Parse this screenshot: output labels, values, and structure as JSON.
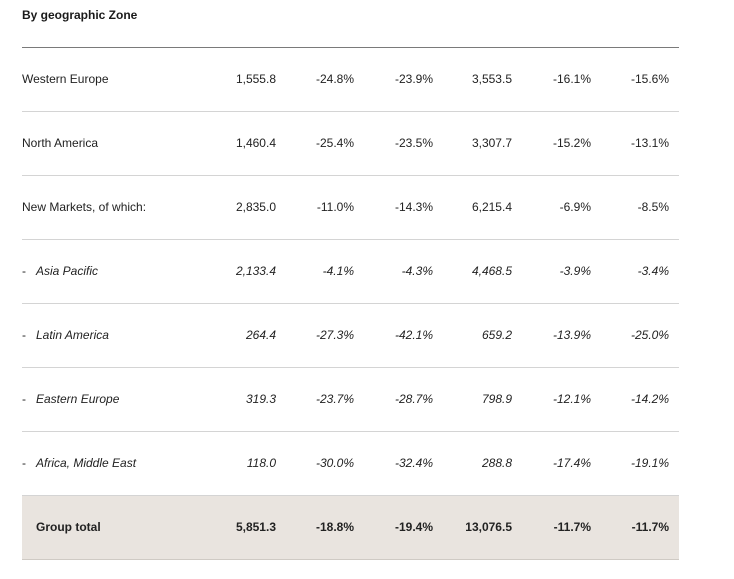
{
  "heading": "By geographic Zone",
  "rows": [
    {
      "label": "Western Europe",
      "values": [
        "1,555.8",
        "-24.8%",
        "-23.9%",
        "3,553.5",
        "-16.1%",
        "-15.6%"
      ]
    },
    {
      "label": "North America",
      "values": [
        "1,460.4",
        "-25.4%",
        "-23.5%",
        "3,307.7",
        "-15.2%",
        "-13.1%"
      ]
    },
    {
      "label": "New Markets, of which:",
      "values": [
        "2,835.0",
        "-11.0%",
        "-14.3%",
        "6,215.4",
        "-6.9%",
        "-8.5%"
      ]
    },
    {
      "dash": "-",
      "label": "Asia Pacific",
      "values": [
        "2,133.4",
        "-4.1%",
        "-4.3%",
        "4,468.5",
        "-3.9%",
        "-3.4%"
      ]
    },
    {
      "dash": "-",
      "label": "Latin America",
      "values": [
        "264.4",
        "-27.3%",
        "-42.1%",
        "659.2",
        "-13.9%",
        "-25.0%"
      ]
    },
    {
      "dash": "-",
      "label": "Eastern Europe",
      "values": [
        "319.3",
        "-23.7%",
        "-28.7%",
        "798.9",
        "-12.1%",
        "-14.2%"
      ]
    },
    {
      "dash": "-",
      "label": "Africa, Middle East",
      "values": [
        "118.0",
        "-30.0%",
        "-32.4%",
        "288.8",
        "-17.4%",
        "-19.1%"
      ]
    }
  ],
  "total": {
    "label": "Group total",
    "values": [
      "5,851.3",
      "-18.8%",
      "-19.4%",
      "13,076.5",
      "-11.7%",
      "-11.7%"
    ]
  }
}
